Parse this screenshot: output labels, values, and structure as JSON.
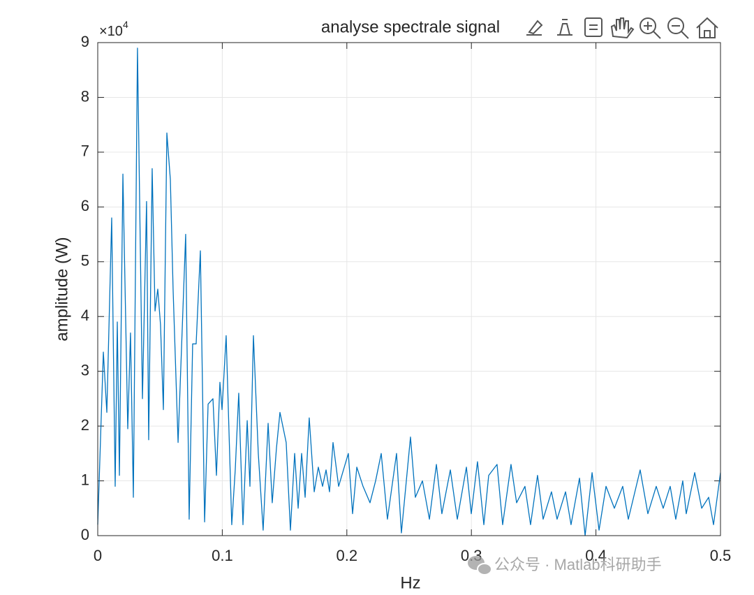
{
  "chart_data": {
    "type": "line",
    "title": "analyse spectrale signal",
    "xlabel": "Hz",
    "ylabel": "amplitude (W)",
    "y_multiplier": {
      "base": "×10",
      "exponent": "4"
    },
    "watermark": "公众号 · Matlab科研助手",
    "color": "#0072bd",
    "grid": true,
    "xlim": [
      0,
      0.5
    ],
    "xticks": [
      0,
      0.1,
      0.2,
      0.3,
      0.4,
      0.5
    ],
    "ylim": [
      0,
      9
    ],
    "yticks": [
      0,
      1,
      2,
      3,
      4,
      5,
      6,
      7,
      8,
      9
    ],
    "x": [
      0,
      0.0045,
      0.0073,
      0.0112,
      0.014,
      0.0157,
      0.0174,
      0.0202,
      0.0241,
      0.0263,
      0.0286,
      0.0319,
      0.0359,
      0.0392,
      0.0409,
      0.0437,
      0.046,
      0.0482,
      0.0504,
      0.0527,
      0.0555,
      0.0583,
      0.0605,
      0.0645,
      0.0706,
      0.0734,
      0.0762,
      0.079,
      0.0824,
      0.0858,
      0.0886,
      0.0925,
      0.0953,
      0.0981,
      0.0998,
      0.1031,
      0.1076,
      0.1104,
      0.1132,
      0.1166,
      0.12,
      0.1222,
      0.125,
      0.1289,
      0.1328,
      0.1368,
      0.1401,
      0.1435,
      0.1463,
      0.1513,
      0.1547,
      0.1581,
      0.1609,
      0.1637,
      0.1665,
      0.1698,
      0.1738,
      0.1771,
      0.1805,
      0.1833,
      0.1861,
      0.1889,
      0.1934,
      0.1973,
      0.2012,
      0.2046,
      0.208,
      0.213,
      0.2186,
      0.2231,
      0.2276,
      0.2326,
      0.2399,
      0.2438,
      0.2511,
      0.255,
      0.2607,
      0.2663,
      0.2719,
      0.2763,
      0.2831,
      0.2887,
      0.296,
      0.2999,
      0.3049,
      0.31,
      0.3139,
      0.3206,
      0.3251,
      0.3318,
      0.3363,
      0.343,
      0.3475,
      0.3531,
      0.3576,
      0.3643,
      0.3688,
      0.3756,
      0.38,
      0.3868,
      0.3913,
      0.3969,
      0.4025,
      0.4081,
      0.4148,
      0.4215,
      0.426,
      0.4355,
      0.4417,
      0.4484,
      0.454,
      0.4596,
      0.4641,
      0.4697,
      0.4725,
      0.4793,
      0.4849,
      0.4905,
      0.4944,
      0.5
    ],
    "values": [
      0.2,
      3.35,
      2.25,
      5.8,
      0.9,
      3.9,
      1.1,
      6.6,
      1.95,
      3.7,
      0.7,
      8.9,
      2.5,
      6.1,
      1.75,
      6.7,
      4.1,
      4.5,
      3.85,
      2.3,
      7.35,
      6.5,
      4.5,
      1.7,
      5.5,
      0.3,
      3.5,
      3.5,
      5.2,
      0.25,
      2.4,
      2.5,
      1.1,
      2.8,
      2.3,
      3.65,
      0.2,
      1.2,
      2.6,
      0.2,
      2.1,
      0.9,
      3.65,
      1.5,
      0.1,
      2.05,
      0.6,
      1.6,
      2.25,
      1.7,
      0.1,
      1.5,
      0.5,
      1.5,
      0.7,
      2.15,
      0.8,
      1.25,
      0.9,
      1.2,
      0.8,
      1.7,
      0.9,
      1.2,
      1.5,
      0.4,
      1.25,
      0.9,
      0.6,
      1.0,
      1.5,
      0.3,
      1.5,
      0.05,
      1.8,
      0.7,
      1.0,
      0.3,
      1.3,
      0.4,
      1.2,
      0.3,
      1.25,
      0.4,
      1.35,
      0.2,
      1.1,
      1.3,
      0.2,
      1.3,
      0.6,
      0.9,
      0.2,
      1.1,
      0.3,
      0.8,
      0.3,
      0.8,
      0.2,
      1.05,
      0.0,
      1.15,
      0.1,
      0.9,
      0.5,
      0.9,
      0.3,
      1.2,
      0.4,
      0.9,
      0.5,
      0.9,
      0.3,
      1.0,
      0.4,
      1.15,
      0.5,
      0.7,
      0.2,
      1.15
    ]
  }
}
